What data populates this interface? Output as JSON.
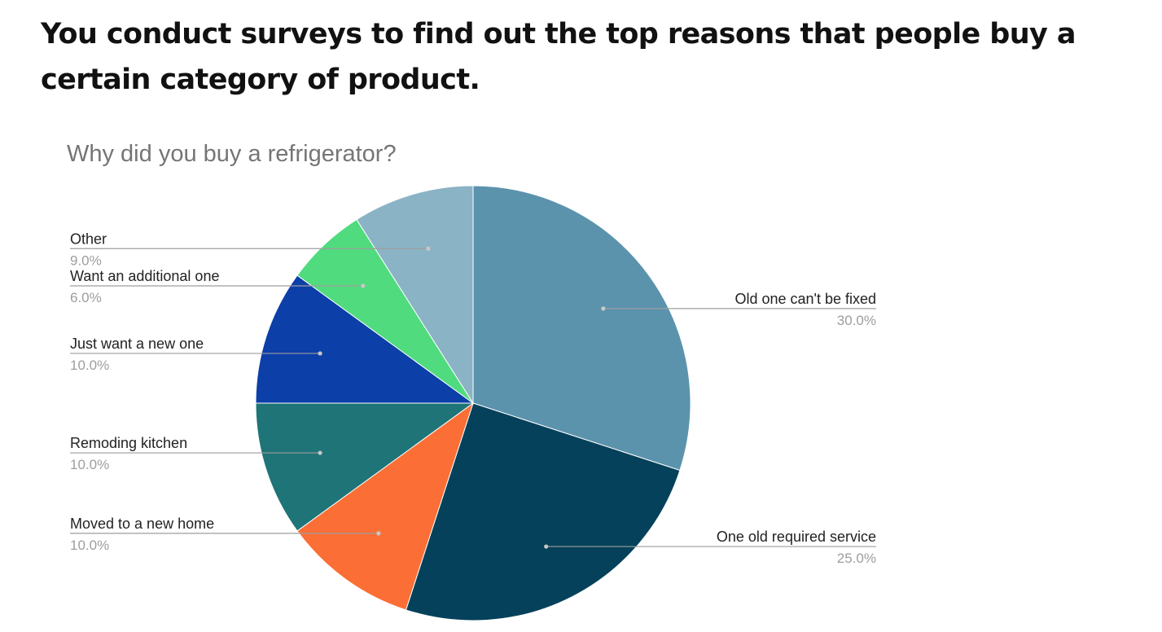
{
  "slide": {
    "heading": "You conduct surveys to find out the top reasons that people buy a certain category of product."
  },
  "chart_data": {
    "type": "pie",
    "title": "Why did you buy a refrigerator?",
    "legend": "none",
    "start_angle_deg": 0,
    "direction": "clockwise",
    "slices": [
      {
        "label": "Old one can't be fixed",
        "value": 30.0,
        "display": "30.0%",
        "color": "#5b93ad",
        "label_side": "right"
      },
      {
        "label": "One old required service",
        "value": 25.0,
        "display": "25.0%",
        "color": "#05415a",
        "label_side": "right"
      },
      {
        "label": "Moved to a new home",
        "value": 10.0,
        "display": "10.0%",
        "color": "#fb6e35",
        "label_side": "left"
      },
      {
        "label": "Remoding kitchen",
        "value": 10.0,
        "display": "10.0%",
        "color": "#1f7477",
        "label_side": "left"
      },
      {
        "label": "Just want a new one",
        "value": 10.0,
        "display": "10.0%",
        "color": "#0d3fa8",
        "label_side": "left"
      },
      {
        "label": "Want an additional one",
        "value": 6.0,
        "display": "6.0%",
        "color": "#50db7e",
        "label_side": "left"
      },
      {
        "label": "Other",
        "value": 9.0,
        "display": "9.0%",
        "color": "#8ab3c5",
        "label_side": "left"
      }
    ]
  }
}
